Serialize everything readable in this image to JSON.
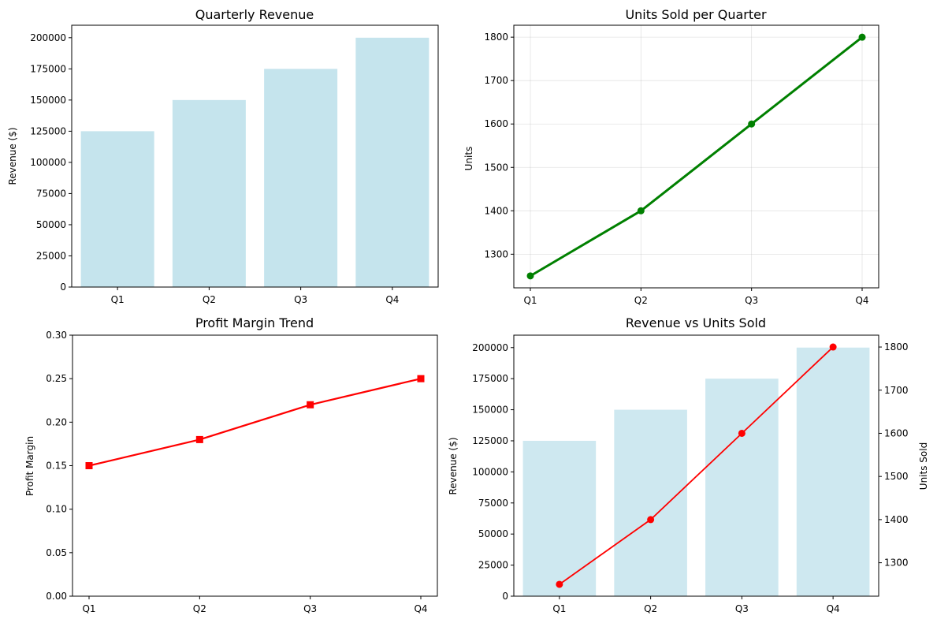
{
  "chart_data": [
    {
      "type": "bar",
      "title": "Quarterly Revenue",
      "categories": [
        "Q1",
        "Q2",
        "Q3",
        "Q4"
      ],
      "values": [
        125000,
        150000,
        175000,
        200000
      ],
      "xlabel": "",
      "ylabel": "Revenue ($)",
      "ylim": [
        0,
        210000
      ],
      "yticks": [
        0,
        25000,
        50000,
        75000,
        100000,
        125000,
        150000,
        175000,
        200000
      ],
      "bar_color": "#add8e6",
      "ytick_color": "#0000ff",
      "grid": false
    },
    {
      "type": "line",
      "title": "Units Sold per Quarter",
      "categories": [
        "Q1",
        "Q2",
        "Q3",
        "Q4"
      ],
      "values": [
        1250,
        1400,
        1600,
        1800
      ],
      "xlabel": "",
      "ylabel": "Units",
      "ylim": [
        1222.5,
        1827.5
      ],
      "yticks": [
        1300,
        1400,
        1500,
        1600,
        1700,
        1800
      ],
      "line_color": "#008000",
      "marker": "circle",
      "grid": true
    },
    {
      "type": "line",
      "title": "Profit Margin Trend",
      "categories": [
        "Q1",
        "Q2",
        "Q3",
        "Q4"
      ],
      "values": [
        0.15,
        0.18,
        0.22,
        0.25
      ],
      "xlabel": "",
      "ylabel": "Profit Margin",
      "ylim": [
        0,
        0.3
      ],
      "yticks": [
        "0.00",
        "0.05",
        "0.10",
        "0.15",
        "0.20",
        "0.25",
        "0.30"
      ],
      "line_color": "#ff0000",
      "marker": "square",
      "grid": false
    },
    {
      "type": "bar",
      "title": "Revenue vs Units Sold",
      "categories": [
        "Q1",
        "Q2",
        "Q3",
        "Q4"
      ],
      "series": [
        {
          "name": "Revenue ($)",
          "type": "bar",
          "axis": "left",
          "values": [
            125000,
            150000,
            175000,
            200000
          ],
          "color": "#add8e6"
        },
        {
          "name": "Units Sold",
          "type": "line",
          "axis": "right",
          "values": [
            1250,
            1400,
            1600,
            1800
          ],
          "color": "#ff0000"
        }
      ],
      "ylabel": "Revenue ($)",
      "ylabel_color": "#0000ff",
      "ylim": [
        0,
        210000
      ],
      "yticks": [
        0,
        25000,
        50000,
        75000,
        100000,
        125000,
        150000,
        175000,
        200000
      ],
      "y2label": "Units Sold",
      "y2label_color": "#ff0000",
      "y2lim": [
        1222.5,
        1827.5
      ],
      "y2ticks": [
        1300,
        1400,
        1500,
        1600,
        1700,
        1800
      ],
      "grid": false
    }
  ]
}
